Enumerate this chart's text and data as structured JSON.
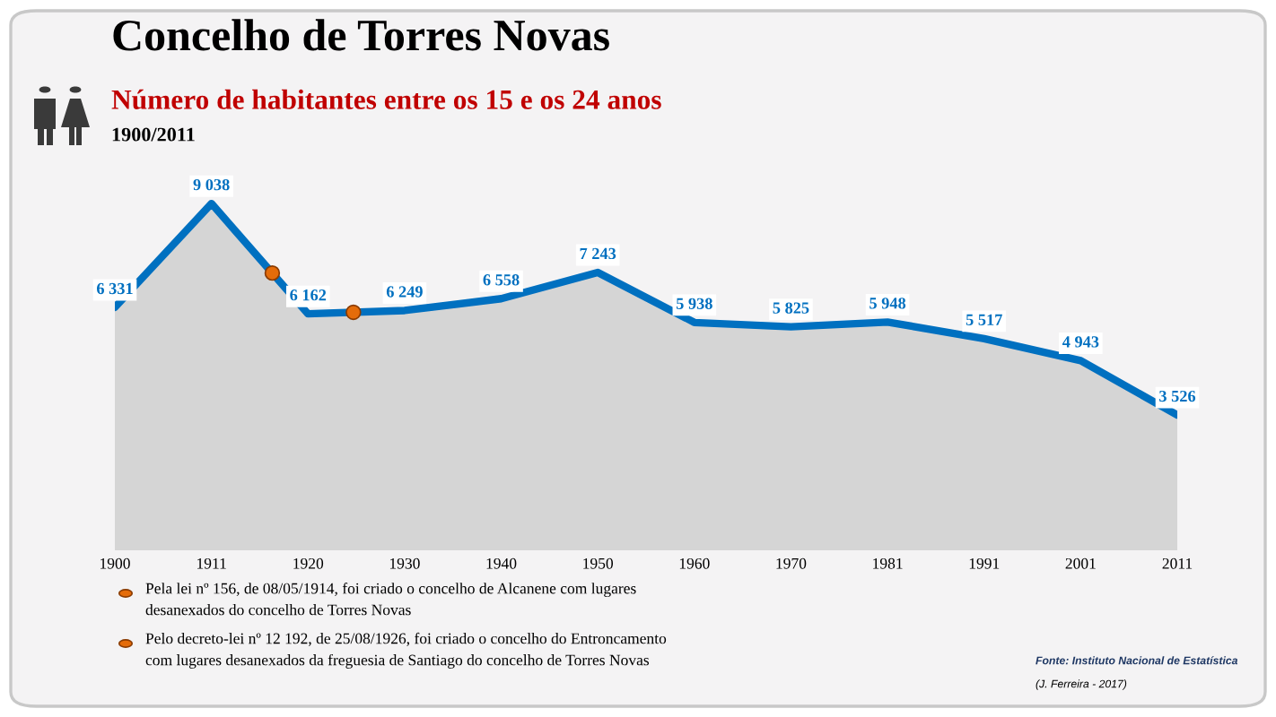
{
  "chart_data": {
    "type": "area",
    "title": "Concelho de Torres Novas",
    "subtitle": "Número de habitantes entre os 15 e os 24 anos",
    "categories": [
      "1900",
      "1911",
      "1920",
      "1930",
      "1940",
      "1950",
      "1960",
      "1970",
      "1981",
      "1991",
      "2001",
      "2011"
    ],
    "series": [
      {
        "type": "area",
        "color": "#0070c0",
        "values": [
          6331,
          9038,
          6162,
          6249,
          6558,
          7243,
          5938,
          5825,
          5948,
          5517,
          4943,
          3526
        ]
      }
    ],
    "tick_labels": "x",
    "data_labels": true,
    "grid": false,
    "legend": false,
    "annotations": [
      "1900/2011",
      "Pela lei nº 156, de 08/05/1914, foi criado o concelho de Alcanene com lugares\ndesanexados do concelho de Torres Novas",
      "Pelo decreto-lei nº 12 192, de 25/08/1926, foi criado o concelho do Entroncamento\ncom lugares desanexados da freguesia de Santiago do concelho de Torres Novas",
      "Fonte: Instituto Nacional de Estatística",
      "(J. Ferreira - 2017)"
    ]
  }
}
